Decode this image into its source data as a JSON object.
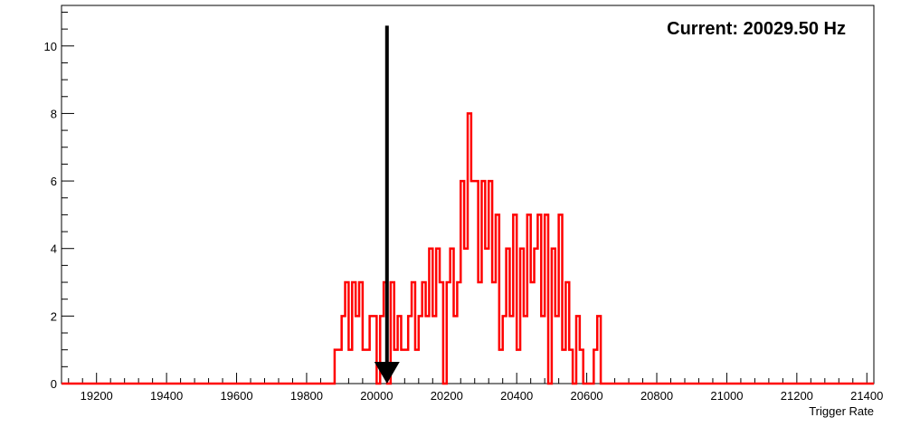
{
  "chart_data": {
    "type": "histogram",
    "title": "",
    "xlabel": "Trigger Rate",
    "ylabel": "",
    "xlim": [
      19100,
      21420
    ],
    "ylim": [
      0,
      11.2
    ],
    "x_ticks": [
      19200,
      19400,
      19600,
      19800,
      20000,
      20200,
      20400,
      20600,
      20800,
      21000,
      21200,
      21400
    ],
    "y_ticks": [
      0,
      2,
      4,
      6,
      8,
      10
    ],
    "grid": false,
    "legend": "none",
    "line_color": "#ff0000",
    "marker": {
      "value": 20029.5,
      "color": "#000000",
      "from_y": 10.6,
      "to_y": 0
    },
    "readout": "Current: 20029.50 Hz",
    "series": [
      {
        "bins": [
          [
            19100,
            0
          ],
          [
            19880,
            1
          ],
          [
            19900,
            2
          ],
          [
            19910,
            3
          ],
          [
            19920,
            1
          ],
          [
            19930,
            3
          ],
          [
            19940,
            2
          ],
          [
            19950,
            3
          ],
          [
            19960,
            1
          ],
          [
            19980,
            2
          ],
          [
            20000,
            0
          ],
          [
            20010,
            2
          ],
          [
            20020,
            3
          ],
          [
            20030,
            0
          ],
          [
            20040,
            3
          ],
          [
            20050,
            1
          ],
          [
            20060,
            2
          ],
          [
            20070,
            1
          ],
          [
            20090,
            2
          ],
          [
            20100,
            3
          ],
          [
            20110,
            1
          ],
          [
            20120,
            2
          ],
          [
            20130,
            3
          ],
          [
            20140,
            2
          ],
          [
            20150,
            4
          ],
          [
            20160,
            2
          ],
          [
            20170,
            4
          ],
          [
            20180,
            3
          ],
          [
            20190,
            0
          ],
          [
            20200,
            3
          ],
          [
            20210,
            4
          ],
          [
            20220,
            2
          ],
          [
            20230,
            3
          ],
          [
            20240,
            6
          ],
          [
            20250,
            4
          ],
          [
            20260,
            8
          ],
          [
            20270,
            6
          ],
          [
            20290,
            3
          ],
          [
            20300,
            6
          ],
          [
            20310,
            4
          ],
          [
            20320,
            6
          ],
          [
            20330,
            3
          ],
          [
            20340,
            5
          ],
          [
            20350,
            1
          ],
          [
            20360,
            2
          ],
          [
            20370,
            4
          ],
          [
            20380,
            2
          ],
          [
            20390,
            5
          ],
          [
            20400,
            1
          ],
          [
            20410,
            4
          ],
          [
            20420,
            2
          ],
          [
            20430,
            5
          ],
          [
            20440,
            3
          ],
          [
            20450,
            4
          ],
          [
            20460,
            5
          ],
          [
            20470,
            2
          ],
          [
            20480,
            5
          ],
          [
            20490,
            0
          ],
          [
            20500,
            4
          ],
          [
            20510,
            2
          ],
          [
            20520,
            5
          ],
          [
            20530,
            1
          ],
          [
            20540,
            3
          ],
          [
            20550,
            1
          ],
          [
            20560,
            0
          ],
          [
            20570,
            2
          ],
          [
            20580,
            1
          ],
          [
            20590,
            0
          ],
          [
            20600,
            0
          ],
          [
            20620,
            1
          ],
          [
            20630,
            2
          ],
          [
            20640,
            0
          ],
          [
            21420,
            0
          ]
        ]
      }
    ]
  }
}
